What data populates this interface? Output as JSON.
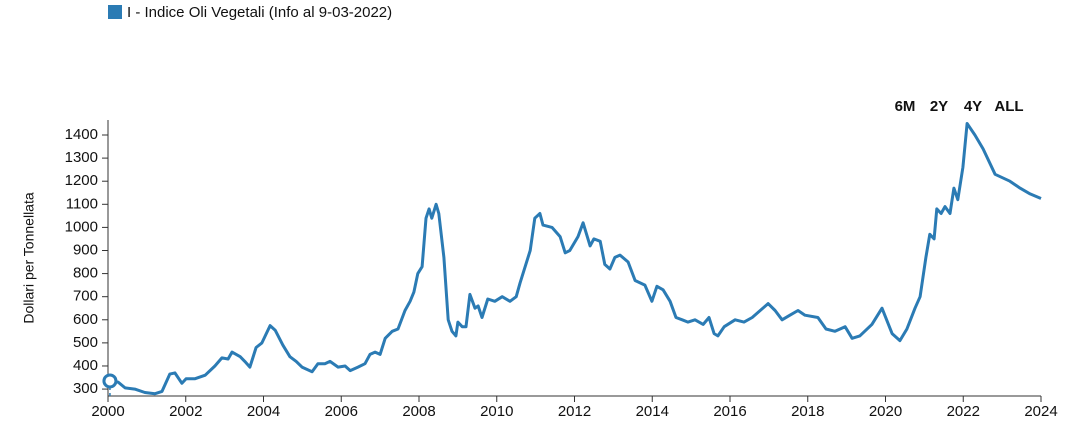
{
  "chart_data": {
    "type": "line",
    "y_label": "Dollari per Tonnellata",
    "range_buttons": [
      "6M",
      "2Y",
      "4Y",
      "ALL"
    ],
    "xlim": [
      2000,
      2024
    ],
    "xticks": [
      2000,
      2002,
      2004,
      2006,
      2008,
      2010,
      2012,
      2014,
      2016,
      2018,
      2020,
      2022,
      2024
    ],
    "ylim": [
      270,
      1465
    ],
    "yticks": [
      300,
      400,
      500,
      600,
      700,
      800,
      900,
      1000,
      1100,
      1200,
      1300,
      1400
    ],
    "series": [
      {
        "name": "I - Indice Oli Vegetali (Info al 9-03-2022)",
        "color": "#2b7bb4",
        "x": [
          2000.05,
          2000.26,
          2000.44,
          2000.69,
          2000.95,
          2001.21,
          2001.39,
          2001.59,
          2001.72,
          2001.9,
          2002.01,
          2002.24,
          2002.5,
          2002.75,
          2002.93,
          2003.09,
          2003.19,
          2003.4,
          2003.52,
          2003.65,
          2003.81,
          2003.96,
          2004.17,
          2004.3,
          2004.5,
          2004.68,
          2004.84,
          2004.99,
          2005.25,
          2005.4,
          2005.58,
          2005.71,
          2005.92,
          2006.1,
          2006.23,
          2006.43,
          2006.61,
          2006.74,
          2006.87,
          2007.0,
          2007.13,
          2007.31,
          2007.46,
          2007.64,
          2007.77,
          2007.87,
          2007.97,
          2008.08,
          2008.18,
          2008.26,
          2008.33,
          2008.44,
          2008.51,
          2008.64,
          2008.75,
          2008.85,
          2008.95,
          2009.0,
          2009.11,
          2009.21,
          2009.31,
          2009.44,
          2009.52,
          2009.62,
          2009.77,
          2009.95,
          2010.14,
          2010.34,
          2010.5,
          2010.6,
          2010.86,
          2010.98,
          2011.11,
          2011.19,
          2011.42,
          2011.63,
          2011.76,
          2011.88,
          2012.09,
          2012.22,
          2012.4,
          2012.5,
          2012.66,
          2012.78,
          2012.91,
          2013.04,
          2013.17,
          2013.38,
          2013.56,
          2013.81,
          2013.99,
          2014.12,
          2014.28,
          2014.46,
          2014.61,
          2014.77,
          2014.92,
          2015.1,
          2015.31,
          2015.46,
          2015.59,
          2015.69,
          2015.85,
          2016.13,
          2016.36,
          2016.57,
          2016.98,
          2017.16,
          2017.34,
          2017.54,
          2017.75,
          2017.93,
          2018.26,
          2018.47,
          2018.7,
          2018.96,
          2019.14,
          2019.34,
          2019.65,
          2019.91,
          2020.17,
          2020.37,
          2020.55,
          2020.76,
          2020.89,
          2021.04,
          2021.14,
          2021.25,
          2021.32,
          2021.43,
          2021.53,
          2021.66,
          2021.76,
          2021.86,
          2021.99,
          2022.1,
          2022.3,
          2022.51,
          2022.82,
          2023.2,
          2023.46,
          2023.72,
          2024.0
        ],
        "values": [
          335,
          330,
          305,
          300,
          285,
          280,
          290,
          365,
          370,
          325,
          345,
          345,
          360,
          400,
          435,
          430,
          460,
          440,
          420,
          395,
          480,
          500,
          575,
          555,
          490,
          440,
          420,
          395,
          375,
          410,
          410,
          420,
          395,
          400,
          380,
          395,
          410,
          450,
          460,
          450,
          520,
          550,
          560,
          640,
          680,
          720,
          800,
          830,
          1040,
          1080,
          1040,
          1100,
          1060,
          870,
          600,
          550,
          530,
          590,
          570,
          570,
          710,
          650,
          660,
          610,
          690,
          680,
          700,
          680,
          700,
          760,
          900,
          1040,
          1060,
          1010,
          1000,
          960,
          890,
          900,
          960,
          1020,
          920,
          950,
          940,
          840,
          820,
          870,
          880,
          850,
          770,
          750,
          680,
          745,
          730,
          680,
          610,
          600,
          590,
          600,
          580,
          610,
          540,
          530,
          570,
          600,
          590,
          610,
          670,
          640,
          600,
          620,
          640,
          620,
          610,
          560,
          550,
          570,
          520,
          530,
          580,
          650,
          540,
          510,
          560,
          650,
          700,
          870,
          970,
          950,
          1080,
          1060,
          1090,
          1060,
          1170,
          1120,
          1260,
          1450,
          1400,
          1340,
          1230,
          1200,
          1170,
          1145,
          1125
        ]
      }
    ]
  }
}
